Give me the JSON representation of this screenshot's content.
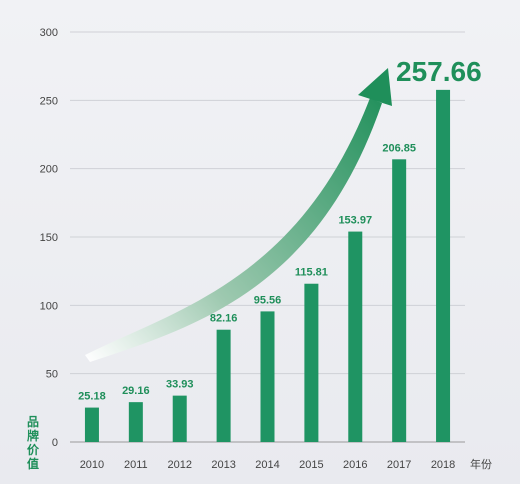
{
  "chart_data": {
    "type": "bar",
    "categories": [
      "2010",
      "2011",
      "2012",
      "2013",
      "2014",
      "2015",
      "2016",
      "2017",
      "2018"
    ],
    "values": [
      25.18,
      29.16,
      33.93,
      82.16,
      95.56,
      115.81,
      153.97,
      206.85,
      257.66
    ],
    "labels": [
      "25.18",
      "29.16",
      "33.93",
      "82.16",
      "95.56",
      "115.81",
      "153.97",
      "206.85",
      "257.66"
    ],
    "ylabel": "品牌价值",
    "xlabel": "年份",
    "ylim": [
      0,
      300
    ],
    "yticks": [
      0,
      50,
      100,
      150,
      200,
      250,
      300
    ],
    "grid": true,
    "bar_color": "#1f9463",
    "accent_color": "#1f8f5a",
    "callout_label": "257.66"
  }
}
